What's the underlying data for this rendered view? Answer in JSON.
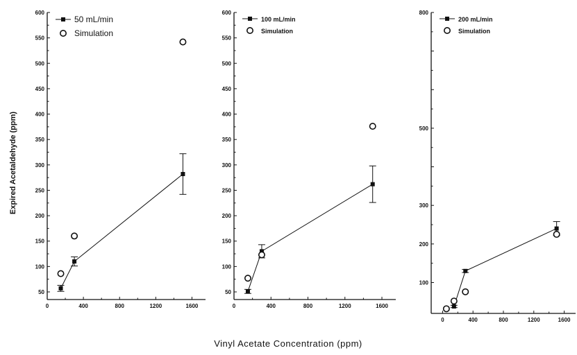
{
  "figure": {
    "ylabel": "Expired Acetaldehyde (ppm)",
    "xlabel": "Vinyl  Acetate  Concentration  (ppm)"
  },
  "chart_data": [
    {
      "type": "line",
      "xlim": [
        0,
        1750
      ],
      "ylim": [
        35,
        600
      ],
      "xticks": [
        0,
        400,
        800,
        1200,
        1600
      ],
      "yticks": [
        50,
        100,
        150,
        200,
        250,
        300,
        350,
        400,
        450,
        500,
        550,
        600
      ],
      "series": [
        {
          "name": "50 mL/min",
          "marker": "square",
          "x": [
            150,
            300,
            1500
          ],
          "y": [
            57,
            110,
            282
          ],
          "err": [
            6,
            9,
            40
          ]
        },
        {
          "name": "Simulation",
          "marker": "open-circle",
          "x": [
            150,
            300,
            1500
          ],
          "y": [
            86,
            160,
            542
          ]
        }
      ],
      "legend": "top-left"
    },
    {
      "type": "line",
      "xlim": [
        0,
        1750
      ],
      "ylim": [
        35,
        600
      ],
      "xticks": [
        0,
        400,
        800,
        1200,
        1600
      ],
      "yticks": [
        50,
        100,
        150,
        200,
        250,
        300,
        350,
        400,
        450,
        500,
        550,
        600
      ],
      "series": [
        {
          "name": "100 mL/min",
          "marker": "square",
          "x": [
            150,
            300,
            1500
          ],
          "y": [
            51,
            130,
            262
          ],
          "err": [
            4,
            13,
            36
          ]
        },
        {
          "name": "Simulation",
          "marker": "open-circle",
          "x": [
            150,
            300,
            1500
          ],
          "y": [
            77,
            123,
            376
          ]
        }
      ],
      "legend": "top-left"
    },
    {
      "type": "line",
      "xlim": [
        -150,
        1750
      ],
      "ylim": [
        20,
        800
      ],
      "xticks": [
        0,
        400,
        800,
        1200,
        1600
      ],
      "yticks": [
        100,
        200,
        300,
        400,
        500,
        600,
        700,
        800
      ],
      "yticklabels": [
        "100",
        "200",
        "300",
        "",
        "500",
        "",
        "",
        "800"
      ],
      "series": [
        {
          "name": "200 mL/min",
          "marker": "square",
          "x": [
            150,
            300,
            1500
          ],
          "y": [
            38,
            130,
            240
          ],
          "err": [
            3,
            4,
            18
          ]
        },
        {
          "name": "Simulation",
          "marker": "open-circle",
          "x": [
            50,
            150,
            300,
            1500
          ],
          "y": [
            32,
            52,
            76,
            225
          ]
        }
      ],
      "legend": "top-left"
    }
  ]
}
